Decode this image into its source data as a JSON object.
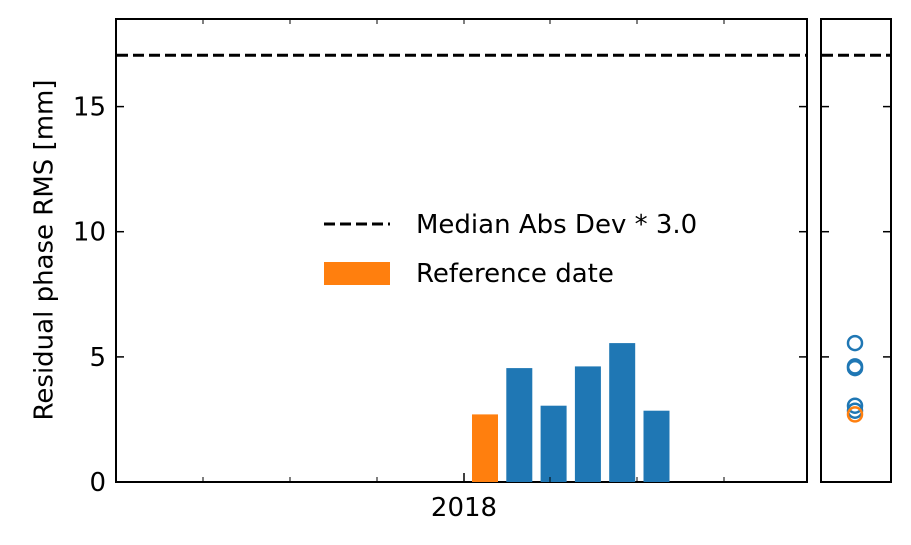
{
  "chart_data": {
    "type": "bar",
    "ylabel": "Residual phase RMS [mm]",
    "xlabel": "",
    "title": "",
    "ylim": [
      0,
      18.5
    ],
    "yticks": [
      0,
      5,
      10,
      15
    ],
    "x_tick_labels": [
      "2018"
    ],
    "threshold": {
      "label": "Median Abs Dev * 3.0",
      "value": 17.05
    },
    "series": [
      {
        "name": "Reference date",
        "color": "#ff7f0e",
        "values": [
          2.7
        ]
      },
      {
        "color": "#1f77b4",
        "values": [
          4.55,
          3.05,
          4.62,
          5.55,
          2.85
        ]
      }
    ],
    "side_scatter": {
      "type": "scatter",
      "points": [
        {
          "y": 5.55,
          "color": "#1f77b4"
        },
        {
          "y": 4.62,
          "color": "#1f77b4"
        },
        {
          "y": 4.55,
          "color": "#1f77b4"
        },
        {
          "y": 3.05,
          "color": "#1f77b4"
        },
        {
          "y": 2.85,
          "color": "#1f77b4"
        },
        {
          "y": 2.7,
          "color": "#ff7f0e"
        }
      ]
    },
    "legend": {
      "position": "center-right",
      "entries": [
        "Median Abs Dev * 3.0",
        "Reference date"
      ]
    },
    "grid": false
  }
}
